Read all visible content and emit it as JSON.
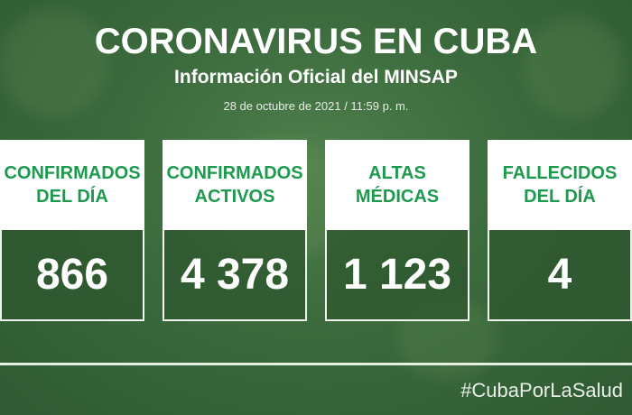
{
  "header": {
    "title": "CORONAVIRUS EN CUBA",
    "subtitle": "Información Oficial del MINSAP",
    "date": "28 de octubre de 2021 / 11:59 p. m."
  },
  "cards": [
    {
      "label": "CONFIRMADOS DEL DÍA",
      "value": "866"
    },
    {
      "label": "CONFIRMADOS ACTIVOS",
      "value": "4 378"
    },
    {
      "label": "ALTAS MÉDICAS",
      "value": "1 123"
    },
    {
      "label": "FALLECIDOS DEL DÍA",
      "value": "4"
    }
  ],
  "footer": {
    "hashtag": "#CubaPorLaSalud"
  },
  "colors": {
    "accent": "#1e9a4e",
    "background": "#3b6a3d"
  }
}
